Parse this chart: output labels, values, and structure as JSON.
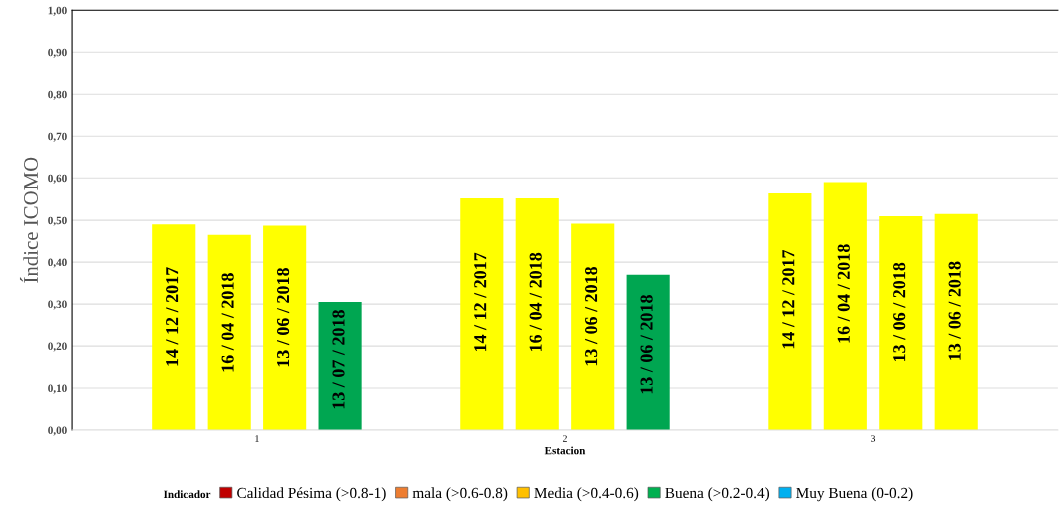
{
  "chart_data": {
    "type": "bar",
    "xlabel": "Estacion",
    "ylabel": "Índice ICOMO",
    "legend_title": "Indicador",
    "categories": [
      "1",
      "2",
      "3"
    ],
    "series": [
      {
        "colors": [
          "#ffff00",
          "#ffff00",
          "#ffff00"
        ],
        "values": [
          0.49,
          0.553,
          0.565
        ]
      },
      {
        "colors": [
          "#ffff00",
          "#ffff00",
          "#ffff00"
        ],
        "values": [
          0.465,
          0.553,
          0.59
        ]
      },
      {
        "colors": [
          "#ffff00",
          "#ffff00",
          "#ffff00"
        ],
        "values": [
          0.487,
          0.492,
          0.51
        ]
      },
      {
        "colors": [
          "#00a651",
          "#00a651",
          "#ffff00"
        ],
        "values": [
          0.305,
          0.37,
          0.515
        ]
      },
      {
        "name": "Calidad Pésima (>0.8-1)",
        "color": "#c00000",
        "values": [
          null,
          null,
          null
        ]
      },
      {
        "name": "mala (>0.6-0.8)",
        "color": "#ed7d31",
        "values": [
          null,
          null,
          null
        ]
      },
      {
        "name": "Media (>0.4-0.6)",
        "color": "#ffc000",
        "values": [
          null,
          null,
          null
        ]
      },
      {
        "name": "Buena (>0.2-0.4)",
        "color": "#00b050",
        "values": [
          null,
          null,
          null
        ]
      },
      {
        "name": "Muy Buena (0-0.2)",
        "color": "#00b0f0",
        "values": [
          null,
          null,
          null
        ]
      }
    ],
    "annotations": [
      "14 / 12 / 2017",
      "16 / 04 / 2018",
      "13 / 06 / 2018",
      "13 / 07 / 2018",
      "14 / 12 / 2017",
      "16 / 04 / 2018",
      "13 / 06 / 2018",
      "13 / 06 / 2018",
      "14 / 12 / 2017",
      "16 / 04 / 2018",
      "13 / 06 / 2018",
      "13 / 06 / 2018"
    ],
    "ylim": [
      0,
      1
    ],
    "yticks": [
      {
        "value": 0,
        "label": "0,00"
      },
      {
        "value": 0.1,
        "label": "0,10"
      },
      {
        "value": 0.2,
        "label": "0,20"
      },
      {
        "value": 0.3,
        "label": "0,30"
      },
      {
        "value": 0.4,
        "label": "0,40"
      },
      {
        "value": 0.5,
        "label": "0,50"
      },
      {
        "value": 0.6,
        "label": "0,60"
      },
      {
        "value": 0.7,
        "label": "0,70"
      },
      {
        "value": 0.8,
        "label": "0,80"
      },
      {
        "value": 0.9,
        "label": "0,90"
      },
      {
        "value": 1,
        "label": "1,00"
      }
    ],
    "grid": "y",
    "legend": "bottom"
  }
}
